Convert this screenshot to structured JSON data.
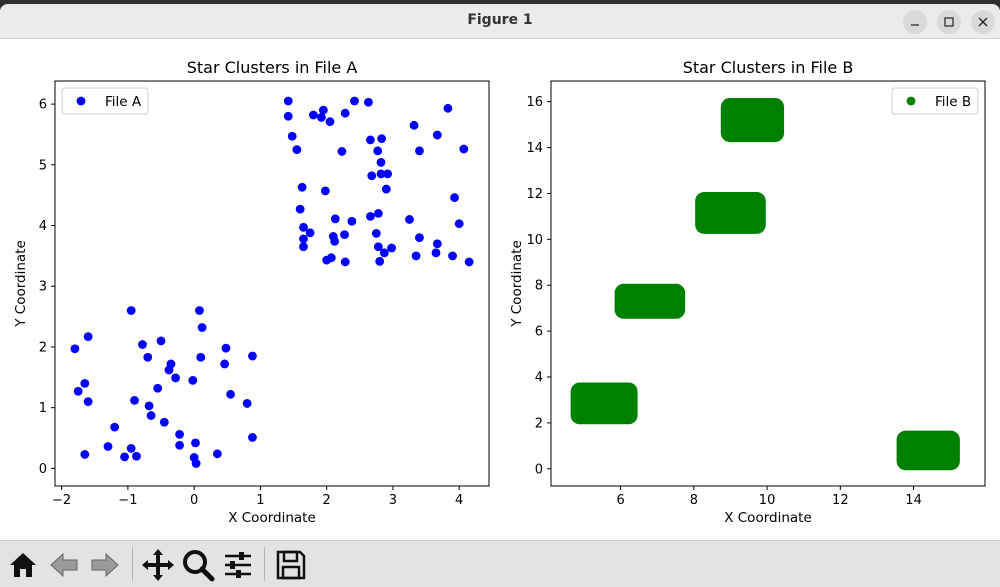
{
  "window": {
    "title": "Figure 1"
  },
  "colors": {
    "file_a": "#0000ff",
    "file_b": "#008000",
    "frame": "#000000"
  },
  "toolbar": {
    "icons": [
      "home-icon",
      "back-icon",
      "forward-icon",
      "pan-icon",
      "zoom-icon",
      "configure-subplots-icon",
      "save-icon"
    ]
  },
  "chart_data": [
    {
      "type": "scatter",
      "title": "Star Clusters in File A",
      "xlabel": "X Coordinate",
      "ylabel": "Y Coordinate",
      "xlim": [
        -2.1,
        4.45
      ],
      "ylim": [
        -0.29,
        6.38
      ],
      "xticks": [
        -2,
        -1,
        0,
        1,
        2,
        3,
        4
      ],
      "yticks": [
        0,
        1,
        2,
        3,
        4,
        5,
        6
      ],
      "legend_position": "upper left",
      "series": [
        {
          "name": "File A",
          "points": [
            [
              -1.8,
              1.97
            ],
            [
              -1.75,
              1.27
            ],
            [
              -1.65,
              1.4
            ],
            [
              -1.6,
              2.17
            ],
            [
              -1.6,
              1.1
            ],
            [
              -1.65,
              0.23
            ],
            [
              -1.3,
              0.36
            ],
            [
              -1.2,
              0.68
            ],
            [
              -1.05,
              0.19
            ],
            [
              -0.95,
              0.33
            ],
            [
              -0.87,
              0.2
            ],
            [
              -0.95,
              2.6
            ],
            [
              -0.9,
              1.12
            ],
            [
              -0.78,
              2.04
            ],
            [
              -0.7,
              1.83
            ],
            [
              -0.68,
              1.03
            ],
            [
              -0.65,
              0.87
            ],
            [
              -0.55,
              1.32
            ],
            [
              -0.5,
              2.1
            ],
            [
              -0.45,
              0.76
            ],
            [
              -0.38,
              1.62
            ],
            [
              -0.35,
              1.72
            ],
            [
              -0.28,
              1.49
            ],
            [
              -0.22,
              0.56
            ],
            [
              -0.22,
              0.38
            ],
            [
              -0.02,
              1.45
            ],
            [
              0.02,
              0.42
            ],
            [
              0.0,
              0.18
            ],
            [
              0.03,
              0.08
            ],
            [
              0.08,
              2.6
            ],
            [
              0.12,
              2.32
            ],
            [
              0.1,
              1.83
            ],
            [
              0.35,
              0.24
            ],
            [
              0.46,
              1.72
            ],
            [
              0.48,
              1.98
            ],
            [
              0.55,
              1.22
            ],
            [
              0.8,
              1.07
            ],
            [
              0.88,
              1.85
            ],
            [
              0.88,
              0.51
            ],
            [
              1.42,
              6.05
            ],
            [
              1.42,
              5.8
            ],
            [
              1.48,
              5.47
            ],
            [
              1.55,
              5.25
            ],
            [
              1.6,
              4.27
            ],
            [
              1.63,
              4.63
            ],
            [
              1.65,
              3.97
            ],
            [
              1.65,
              3.78
            ],
            [
              1.65,
              3.65
            ],
            [
              1.75,
              3.88
            ],
            [
              1.8,
              5.82
            ],
            [
              1.92,
              5.78
            ],
            [
              1.95,
              5.9
            ],
            [
              1.98,
              4.57
            ],
            [
              2.0,
              3.43
            ],
            [
              2.05,
              5.71
            ],
            [
              2.07,
              3.47
            ],
            [
              2.1,
              3.82
            ],
            [
              2.12,
              3.74
            ],
            [
              2.13,
              4.11
            ],
            [
              2.23,
              5.22
            ],
            [
              2.27,
              3.85
            ],
            [
              2.28,
              5.85
            ],
            [
              2.28,
              3.4
            ],
            [
              2.38,
              4.07
            ],
            [
              2.42,
              6.05
            ],
            [
              2.63,
              6.03
            ],
            [
              2.66,
              5.41
            ],
            [
              2.66,
              4.15
            ],
            [
              2.68,
              4.82
            ],
            [
              2.75,
              3.87
            ],
            [
              2.77,
              5.23
            ],
            [
              2.78,
              4.2
            ],
            [
              2.78,
              3.65
            ],
            [
              2.8,
              3.41
            ],
            [
              2.82,
              5.04
            ],
            [
              2.82,
              4.85
            ],
            [
              2.83,
              5.43
            ],
            [
              2.87,
              3.55
            ],
            [
              2.9,
              4.6
            ],
            [
              2.92,
              4.85
            ],
            [
              2.98,
              3.63
            ],
            [
              3.25,
              4.1
            ],
            [
              3.32,
              5.65
            ],
            [
              3.35,
              3.5
            ],
            [
              3.4,
              3.8
            ],
            [
              3.4,
              5.23
            ],
            [
              3.65,
              3.55
            ],
            [
              3.67,
              3.7
            ],
            [
              3.67,
              5.49
            ],
            [
              3.83,
              5.93
            ],
            [
              3.9,
              3.5
            ],
            [
              3.93,
              4.46
            ],
            [
              4.0,
              4.03
            ],
            [
              4.07,
              5.26
            ],
            [
              4.15,
              3.4
            ]
          ]
        }
      ]
    },
    {
      "type": "scatter",
      "title": "Star Clusters in File B",
      "xlabel": "X Coordinate",
      "ylabel": "Y Coordinate",
      "xlim": [
        4.1,
        15.95
      ],
      "ylim": [
        -0.75,
        16.9
      ],
      "xticks": [
        6,
        8,
        10,
        12,
        14
      ],
      "yticks": [
        0,
        2,
        4,
        6,
        8,
        10,
        12,
        14,
        16
      ],
      "legend_position": "upper right",
      "series": [
        {
          "name": "File B",
          "clusters": [
            {
              "x_range": [
                4.8,
                6.3
              ],
              "y_range": [
                2.2,
                3.5
              ]
            },
            {
              "x_range": [
                6.0,
                7.6
              ],
              "y_range": [
                6.8,
                7.8
              ]
            },
            {
              "x_range": [
                8.2,
                9.8
              ],
              "y_range": [
                10.5,
                11.8
              ]
            },
            {
              "x_range": [
                8.9,
                10.3
              ],
              "y_range": [
                14.5,
                15.9
              ]
            },
            {
              "x_range": [
                13.7,
                15.1
              ],
              "y_range": [
                0.2,
                1.4
              ]
            }
          ]
        }
      ]
    }
  ]
}
